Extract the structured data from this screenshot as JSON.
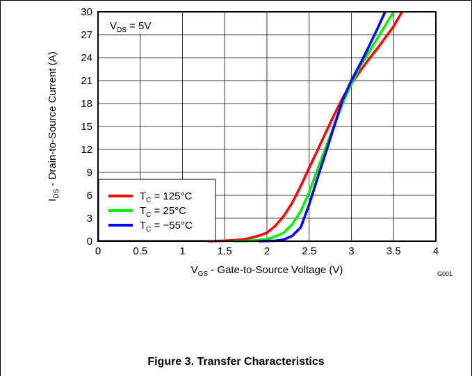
{
  "chart_data": {
    "type": "line",
    "title": "",
    "xlabel": {
      "main": "V",
      "sub": "GS",
      "rest": " - Gate-to-Source Voltage (V)"
    },
    "ylabel": {
      "main": "I",
      "sub": "DS",
      "rest": " - Drain-to-Source Current (A)"
    },
    "xlim": [
      0,
      4
    ],
    "ylim": [
      0,
      30
    ],
    "x_ticks": [
      "0",
      "0.5",
      "1",
      "1.5",
      "2",
      "2.5",
      "3",
      "3.5",
      "4"
    ],
    "y_ticks": [
      "0",
      "3",
      "6",
      "9",
      "12",
      "15",
      "18",
      "21",
      "24",
      "27",
      "30"
    ],
    "grid": true,
    "legend_position": "bottom-left",
    "condition": {
      "main": "V",
      "sub": "DS",
      "rest": " = 5V"
    },
    "figure_code": "G001",
    "series": [
      {
        "name": {
          "main": "T",
          "sub": "C",
          "rest": " = 125°C"
        },
        "color": "#ff0000",
        "points": [
          [
            1.3,
            0
          ],
          [
            1.5,
            0.05
          ],
          [
            1.7,
            0.2
          ],
          [
            1.8,
            0.4
          ],
          [
            1.9,
            0.7
          ],
          [
            2.0,
            1.1
          ],
          [
            2.1,
            2.0
          ],
          [
            2.2,
            3.3
          ],
          [
            2.3,
            5.0
          ],
          [
            2.4,
            7.2
          ],
          [
            2.5,
            9.6
          ],
          [
            2.6,
            11.9
          ],
          [
            2.7,
            14.3
          ],
          [
            2.8,
            16.6
          ],
          [
            2.9,
            18.8
          ],
          [
            3.0,
            20.6
          ],
          [
            3.1,
            22.2
          ],
          [
            3.2,
            23.7
          ],
          [
            3.3,
            25.1
          ],
          [
            3.4,
            26.6
          ],
          [
            3.5,
            28.1
          ],
          [
            3.6,
            30
          ]
        ]
      },
      {
        "name": {
          "main": "T",
          "sub": "C",
          "rest": " = 25°C"
        },
        "color": "#00ee00",
        "points": [
          [
            1.6,
            0
          ],
          [
            1.8,
            0.05
          ],
          [
            2.0,
            0.25
          ],
          [
            2.1,
            0.6
          ],
          [
            2.2,
            1.1
          ],
          [
            2.3,
            2.2
          ],
          [
            2.4,
            3.9
          ],
          [
            2.5,
            6.4
          ],
          [
            2.6,
            9.4
          ],
          [
            2.7,
            12.4
          ],
          [
            2.8,
            15.2
          ],
          [
            2.9,
            18.1
          ],
          [
            3.0,
            20.6
          ],
          [
            3.1,
            22.8
          ],
          [
            3.2,
            24.6
          ],
          [
            3.3,
            26.4
          ],
          [
            3.4,
            28.2
          ],
          [
            3.5,
            30
          ]
        ]
      },
      {
        "name": {
          "main": "T",
          "sub": "C",
          "rest": " = −55°C"
        },
        "color": "#0000ff",
        "points": [
          [
            1.9,
            0
          ],
          [
            2.1,
            0.05
          ],
          [
            2.2,
            0.2
          ],
          [
            2.3,
            0.7
          ],
          [
            2.4,
            1.8
          ],
          [
            2.5,
            4.8
          ],
          [
            2.6,
            8.3
          ],
          [
            2.7,
            11.7
          ],
          [
            2.8,
            15.2
          ],
          [
            2.9,
            18.6
          ],
          [
            3.0,
            21.0
          ],
          [
            3.1,
            23.1
          ],
          [
            3.2,
            25.3
          ],
          [
            3.3,
            27.6
          ],
          [
            3.4,
            30
          ]
        ]
      }
    ]
  },
  "caption": "Figure 3. Transfer Characteristics"
}
